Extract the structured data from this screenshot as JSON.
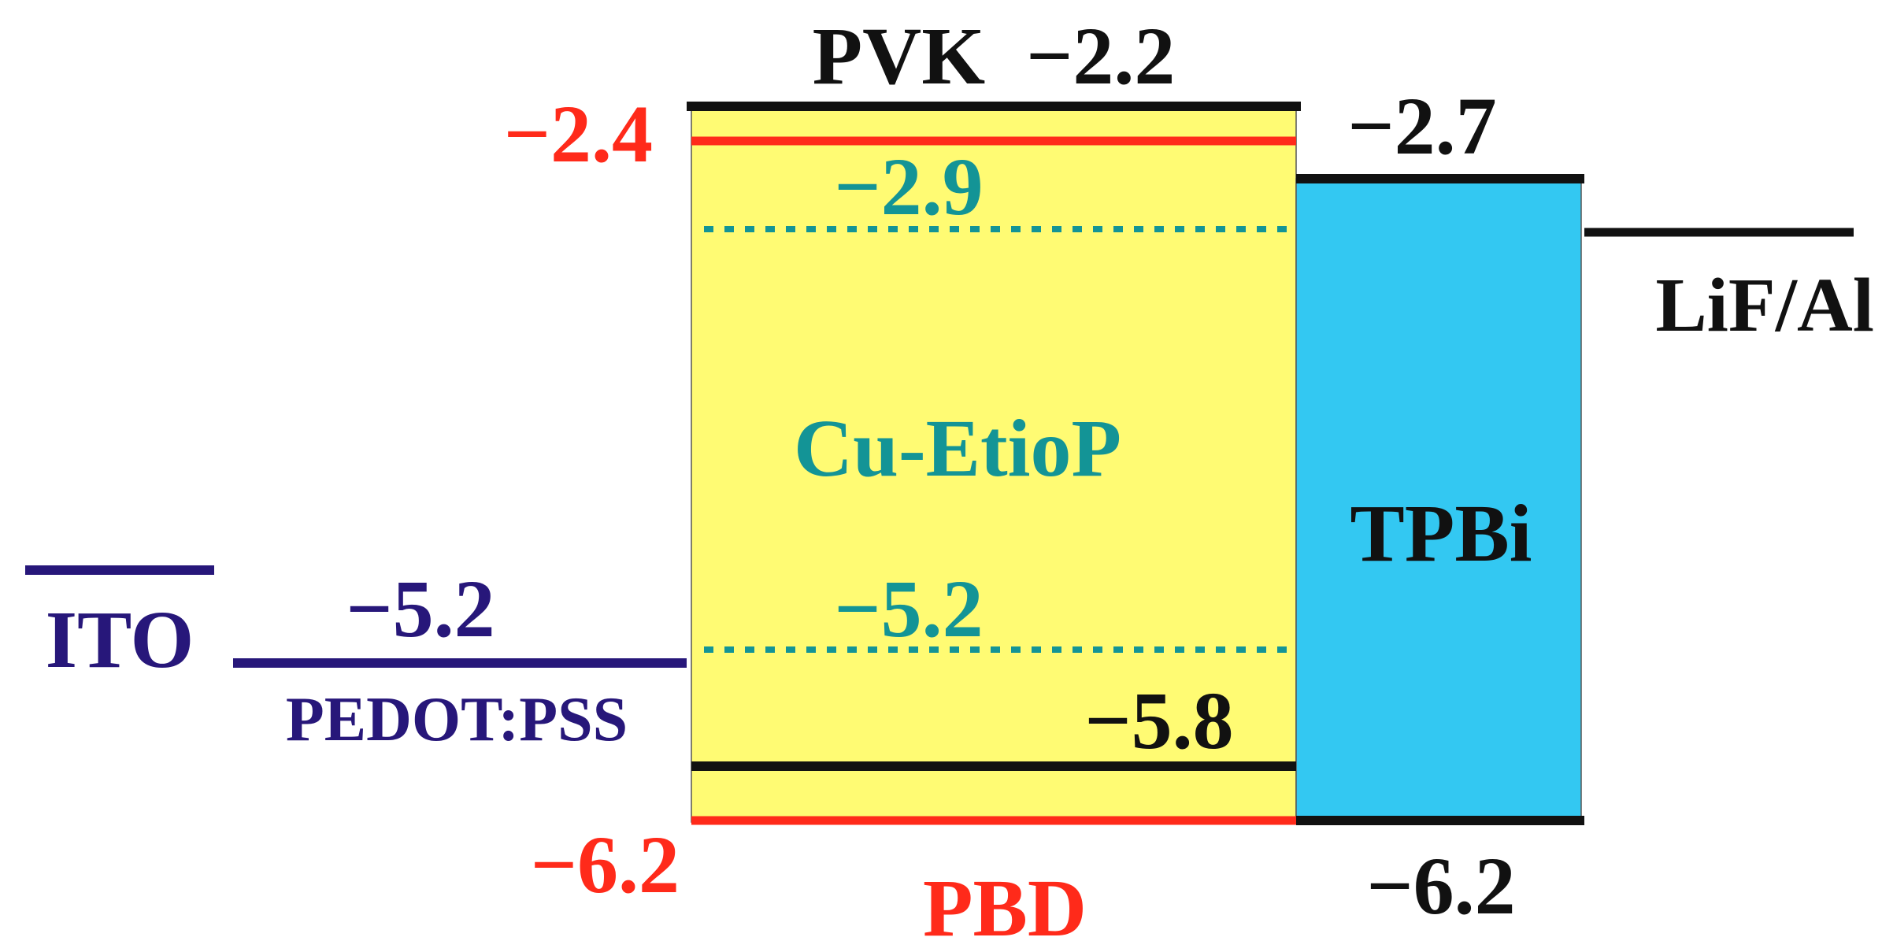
{
  "colors": {
    "pvk_layer": "#FFFB73",
    "tpbi_layer": "#33C8F2",
    "black_level": "#111111",
    "pbd_red": "#FF2A1A",
    "cu_teal": "#139496",
    "anode_navy": "#27177A"
  },
  "labels": {
    "pvk_lumo": "PVK  −2.2",
    "pbd_lumo": "−2.4",
    "tpbi_lumo": "−2.7",
    "cu_lumo": "−2.9",
    "cathode_name": "LiF/Al",
    "cu_name": "Cu-EtioP",
    "tpbi_name": "TPBi",
    "ito_name": "ITO",
    "pedot_homo": "−5.2",
    "cu_homo": "−5.2",
    "pedot_name": "PEDOT:PSS",
    "pvk_homo": "−5.8",
    "pbd_homo": "−6.2",
    "tpbi_homo": "−6.2",
    "pbd_name": "PBD"
  }
}
